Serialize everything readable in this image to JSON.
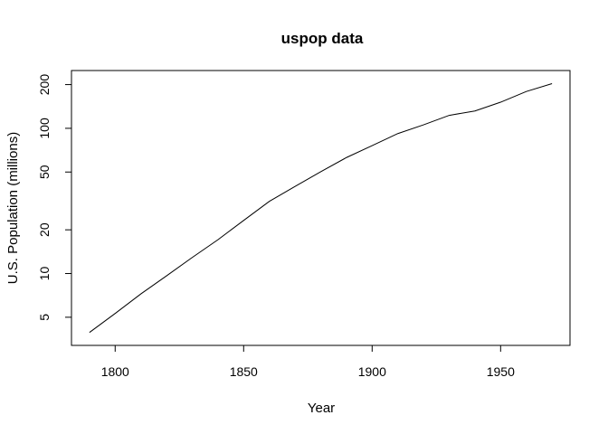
{
  "chart_data": {
    "type": "line",
    "title": "uspop data",
    "xlabel": "Year",
    "ylabel": "U.S. Population (millions)",
    "yscale": "log",
    "xlim": [
      1783,
      1977
    ],
    "ylim": [
      3.2,
      250
    ],
    "grid": false,
    "legend": "none",
    "line_color": "#000000",
    "x_ticks": [
      1800,
      1850,
      1900,
      1950
    ],
    "y_ticks": [
      5,
      10,
      20,
      50,
      100,
      200
    ],
    "x": [
      1790,
      1800,
      1810,
      1820,
      1830,
      1840,
      1850,
      1860,
      1870,
      1880,
      1890,
      1900,
      1910,
      1920,
      1930,
      1940,
      1950,
      1960,
      1970
    ],
    "y": [
      3.93,
      5.31,
      7.24,
      9.64,
      12.9,
      17.1,
      23.2,
      31.4,
      39.8,
      50.2,
      62.9,
      76.0,
      92.0,
      105.7,
      122.8,
      131.7,
      151.3,
      179.3,
      203.2
    ]
  }
}
